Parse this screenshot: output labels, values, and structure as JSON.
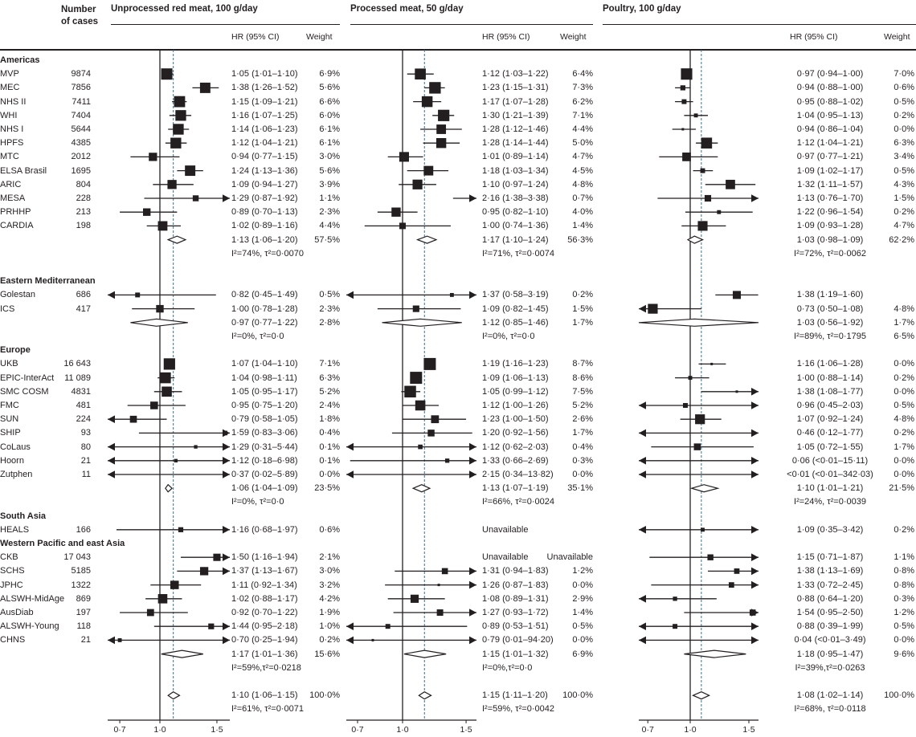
{
  "chart_data": {
    "type": "forest",
    "cases_header": [
      "Number",
      "of cases"
    ],
    "null_value": 1.0,
    "scale": "log",
    "panels": [
      {
        "title": "Unprocessed red meat, 100 g/day",
        "hr_header": "HR (95% CI)",
        "weight_header": "Weight",
        "reference_line": 1.1,
        "ticks": [
          "0·7",
          "1·0",
          "1·5"
        ],
        "tick_values": [
          0.7,
          1.0,
          1.5
        ]
      },
      {
        "title": "Processed meat, 50 g/day",
        "hr_header": "HR (95% CI)",
        "weight_header": "Weight",
        "reference_line": 1.15,
        "ticks": [
          "0·7",
          "1·0",
          "1·5"
        ],
        "tick_values": [
          0.7,
          1.0,
          1.5
        ]
      },
      {
        "title": "Poultry, 100 g/day",
        "hr_header": "HR (95% CI)",
        "weight_header": "Weight",
        "reference_line": 1.08,
        "ticks": [
          "0·7",
          "1·0",
          "1·5"
        ],
        "tick_values": [
          0.7,
          1.0,
          1.5
        ]
      }
    ],
    "rows": [
      {
        "type": "region",
        "label": "Americas"
      },
      {
        "type": "study",
        "label": "MVP",
        "cases": "9874",
        "cells": [
          [
            "1·05 (1·01–1·10)",
            "6·9%"
          ],
          [
            "1·12 (1·03–1·22)",
            "6·4%"
          ],
          [
            "0·97 (0·94–1·00)",
            "7·0%"
          ]
        ]
      },
      {
        "type": "study",
        "label": "MEC",
        "cases": "7856",
        "cells": [
          [
            "1·38 (1·26–1·52)",
            "5·6%"
          ],
          [
            "1·23 (1·15–1·31)",
            "7·3%"
          ],
          [
            "0·94 (0·88–1·00)",
            "0·6%"
          ]
        ]
      },
      {
        "type": "study",
        "label": "NHS II",
        "cases": "7411",
        "cells": [
          [
            "1·15 (1·09–1·21)",
            "6·6%"
          ],
          [
            "1·17 (1·07–1·28)",
            "6·2%"
          ],
          [
            "0·95 (0·88–1·02)",
            "0·5%"
          ]
        ]
      },
      {
        "type": "study",
        "label": "WHI",
        "cases": "7404",
        "cells": [
          [
            "1·16 (1·07–1·25)",
            "6·0%"
          ],
          [
            "1·30 (1·21–1·39)",
            "7·1%"
          ],
          [
            "1·04 (0·95–1·13)",
            "0·2%"
          ]
        ]
      },
      {
        "type": "study",
        "label": "NHS I",
        "cases": "5644",
        "cells": [
          [
            "1·14 (1·06–1·23)",
            "6·1%"
          ],
          [
            "1·28 (1·12–1·46)",
            "4·4%"
          ],
          [
            "0·94 (0·86–1·04)",
            "0·0%"
          ]
        ]
      },
      {
        "type": "study",
        "label": "HPFS",
        "cases": "4385",
        "cells": [
          [
            "1·12 (1·04–1·21)",
            "6·1%"
          ],
          [
            "1·28 (1·14–1·44)",
            "5·0%"
          ],
          [
            "1·12 (1·04–1·21)",
            "6·3%"
          ]
        ]
      },
      {
        "type": "study",
        "label": "MTC",
        "cases": "2012",
        "cells": [
          [
            "0·94 (0·77–1·15)",
            "3·0%"
          ],
          [
            "1·01 (0·89–1·14)",
            "4·7%"
          ],
          [
            "0·97 (0·77–1·21)",
            "3·4%"
          ]
        ]
      },
      {
        "type": "study",
        "label": "ELSA Brasil",
        "cases": "1695",
        "cells": [
          [
            "1·24 (1·13–1·36)",
            "5·6%"
          ],
          [
            "1·18 (1·03–1·34)",
            "4·5%"
          ],
          [
            "1·09 (1·02–1·17)",
            "0·5%"
          ]
        ]
      },
      {
        "type": "study",
        "label": "ARIC",
        "cases": "804",
        "cells": [
          [
            "1·09 (0·94–1·27)",
            "3·9%"
          ],
          [
            "1·10 (0·97–1·24)",
            "4·8%"
          ],
          [
            "1·32 (1·11–1·57)",
            "4·3%"
          ]
        ]
      },
      {
        "type": "study",
        "label": "MESA",
        "cases": "228",
        "cells": [
          [
            "1·29 (0·87–1·92)",
            "1·1%"
          ],
          [
            "2·16 (1·38–3·38)",
            "0·7%"
          ],
          [
            "1·13 (0·76–1·70)",
            "1·5%"
          ]
        ]
      },
      {
        "type": "study",
        "label": "PRHHP",
        "cases": "213",
        "cells": [
          [
            "0·89 (0·70–1·13)",
            "2·3%"
          ],
          [
            "0·95 (0·82–1·10)",
            "4·0%"
          ],
          [
            "1·22 (0·96–1·54)",
            "0·2%"
          ]
        ]
      },
      {
        "type": "study",
        "label": "CARDIA",
        "cases": "198",
        "cells": [
          [
            "1·02 (0·89–1·16)",
            "4·4%"
          ],
          [
            "1·00 (0·74–1·36)",
            "1·4%"
          ],
          [
            "1·09 (0·93–1·28)",
            "4·7%"
          ]
        ]
      },
      {
        "type": "pooled",
        "cells": [
          [
            "1·13 (1·06–1·20)",
            "57·5%"
          ],
          [
            "1·17 (1·10–1·24)",
            "56·3%"
          ],
          [
            "1·03 (0·98–1·09)",
            "62·2%"
          ]
        ]
      },
      {
        "type": "het",
        "cells": [
          [
            "I²=74%, τ²=0·0070",
            ""
          ],
          [
            "I²=71%, τ²=0·0074",
            ""
          ],
          [
            "I²=72%, τ²=0·0062",
            ""
          ]
        ]
      },
      {
        "type": "blank"
      },
      {
        "type": "region",
        "label": "Eastern Mediterranean"
      },
      {
        "type": "study",
        "label": "Golestan",
        "cases": "686",
        "cells": [
          [
            "0·82 (0·45–1·49)",
            "0·5%"
          ],
          [
            "1·37 (0·58–3·19)",
            "0·2%"
          ],
          [
            "1·38 (1·19–1·60)",
            ""
          ]
        ]
      },
      {
        "type": "study",
        "label": "ICS",
        "cases": "417",
        "cells": [
          [
            "1·00 (0·78–1·28)",
            "2·3%"
          ],
          [
            "1·09 (0·82–1·45)",
            "1·5%"
          ],
          [
            "0·73 (0·50–1·08)",
            "4·8%"
          ]
        ]
      },
      {
        "type": "pooled",
        "cells": [
          [
            "0·97 (0·77–1·22)",
            "2·8%"
          ],
          [
            "1·12 (0·85–1·46)",
            "1·7%"
          ],
          [
            "1·03 (0·56–1·92)",
            "1·7%"
          ]
        ]
      },
      {
        "type": "het",
        "cells": [
          [
            "I²=0%, τ²=0·0",
            ""
          ],
          [
            "I²=0%, τ²=0·0",
            ""
          ],
          [
            "I²=89%, τ²=0·1795",
            "6·5%"
          ]
        ]
      },
      {
        "type": "region",
        "label": "Europe"
      },
      {
        "type": "study",
        "label": "UKB",
        "cases": "16 643",
        "cells": [
          [
            "1·07 (1·04–1·10)",
            "7·1%"
          ],
          [
            "1·19 (1·16–1·23)",
            "8·7%"
          ],
          [
            "1·16 (1·06–1·28)",
            "0·0%"
          ]
        ]
      },
      {
        "type": "study",
        "label": "EPIC-InterAct",
        "cases": "11 089",
        "cells": [
          [
            "1·04 (0·98–1·11)",
            "6·3%"
          ],
          [
            "1·09 (1·06–1·13)",
            "8·6%"
          ],
          [
            "1·00 (0·88–1·14)",
            "0·2%"
          ]
        ]
      },
      {
        "type": "study",
        "label": "SMC COSM",
        "cases": "4831",
        "cells": [
          [
            "1·05 (0·95–1·17)",
            "5·2%"
          ],
          [
            "1·05 (0·99–1·12)",
            "7·5%"
          ],
          [
            "1·38 (1·08–1·77)",
            "0·0%"
          ]
        ]
      },
      {
        "type": "study",
        "label": "FMC",
        "cases": "481",
        "cells": [
          [
            "0·95 (0·75–1·20)",
            "2·4%"
          ],
          [
            "1·12 (1·00–1·26)",
            "5·2%"
          ],
          [
            "0·96 (0·45–2·03)",
            "0·5%"
          ]
        ]
      },
      {
        "type": "study",
        "label": "SUN",
        "cases": "224",
        "cells": [
          [
            "0·79 (0·58–1·05)",
            "1·8%"
          ],
          [
            "1·23 (1·00–1·50)",
            "2·6%"
          ],
          [
            "1·07 (0·92–1·24)",
            "4·8%"
          ]
        ]
      },
      {
        "type": "study",
        "label": "SHIP",
        "cases": "93",
        "cells": [
          [
            "1·59 (0·83–3·06)",
            "0·4%"
          ],
          [
            "1·20 (0·92–1·56)",
            "1·7%"
          ],
          [
            "0·46 (0·12–1·77)",
            "0·2%"
          ]
        ]
      },
      {
        "type": "study",
        "label": "CoLaus",
        "cases": "80",
        "cells": [
          [
            "1·29 (0·31–5·44)",
            "0·1%"
          ],
          [
            "1·12 (0·62–2·03)",
            "0·4%"
          ],
          [
            "1·05 (0·72–1·55)",
            "1·7%"
          ]
        ]
      },
      {
        "type": "study",
        "label": "Hoorn",
        "cases": "21",
        "cells": [
          [
            "1·12 (0·18–6·98)",
            "0·1%"
          ],
          [
            "1·33 (0·66–2·69)",
            "0·3%"
          ],
          [
            "0·06 (<0·01–15·11)",
            "0·0%"
          ]
        ]
      },
      {
        "type": "study",
        "label": "Zutphen",
        "cases": "11",
        "cells": [
          [
            "0·37 (0·02–5·89)",
            "0·0%"
          ],
          [
            "2·15 (0·34–13·82)",
            "0·0%"
          ],
          [
            "<0·01 (<0·01–342·03)",
            "0·0%"
          ]
        ]
      },
      {
        "type": "pooled",
        "cells": [
          [
            "1·06 (1·04–1·09)",
            "23·5%"
          ],
          [
            "1·13 (1·07–1·19)",
            "35·1%"
          ],
          [
            "1·10 (1·01–1·21)",
            "21·5%"
          ]
        ]
      },
      {
        "type": "het",
        "cells": [
          [
            "I²=0%, τ²=0·0",
            ""
          ],
          [
            "I²=66%, τ²=0·0024",
            ""
          ],
          [
            "I²=24%, τ²=0·0039",
            ""
          ]
        ]
      },
      {
        "type": "region",
        "label": "South Asia"
      },
      {
        "type": "study",
        "label": "HEALS",
        "cases": "166",
        "cells": [
          [
            "1·16 (0·68–1·97)",
            "0·6%"
          ],
          [
            "Unavailable",
            ""
          ],
          [
            "1·09 (0·35–3·42)",
            "0·2%"
          ]
        ]
      },
      {
        "type": "region",
        "label": "Western Pacific and east Asia"
      },
      {
        "type": "study",
        "label": "CKB",
        "cases": "17 043",
        "cells": [
          [
            "1·50 (1·16–1·94)",
            "2·1%"
          ],
          [
            "Unavailable",
            "Unavailable"
          ],
          [
            "1·15 (0·71–1·87)",
            "1·1%"
          ]
        ]
      },
      {
        "type": "study",
        "label": "SCHS",
        "cases": "5185",
        "cells": [
          [
            "1·37 (1·13–1·67)",
            "3·0%"
          ],
          [
            "1·31 (0·94–1·83)",
            "1·2%"
          ],
          [
            "1·38 (1·13–1·69)",
            "0·8%"
          ]
        ]
      },
      {
        "type": "study",
        "label": "JPHC",
        "cases": "1322",
        "cells": [
          [
            "1·11 (0·92–1·34)",
            "3·2%"
          ],
          [
            "1·26 (0·87–1·83)",
            "0·0%"
          ],
          [
            "1·33 (0·72–2·45)",
            "0·8%"
          ]
        ]
      },
      {
        "type": "study",
        "label": "ALSWH-MidAge",
        "cases": "869",
        "cells": [
          [
            "1·02 (0·88–1·17)",
            "4·2%"
          ],
          [
            "1·08 (0·89–1·31)",
            "2·9%"
          ],
          [
            "0·88 (0·64–1·20)",
            "0·3%"
          ]
        ]
      },
      {
        "type": "study",
        "label": "AusDiab",
        "cases": "197",
        "cells": [
          [
            "0·92 (0·70–1·22)",
            "1·9%"
          ],
          [
            "1·27 (0·93–1·72)",
            "1·4%"
          ],
          [
            "1·54 (0·95–2·50)",
            "1·2%"
          ]
        ]
      },
      {
        "type": "study",
        "label": "ALSWH-Young",
        "cases": "118",
        "cells": [
          [
            "1·44 (0·95–2·18)",
            "1·0%"
          ],
          [
            "0·89 (0·53–1·51)",
            "0·5%"
          ],
          [
            "0·88 (0·39–1·99)",
            "0·5%"
          ]
        ]
      },
      {
        "type": "study",
        "label": "CHNS",
        "cases": "21",
        "cells": [
          [
            "0·70 (0·25–1·94)",
            "0·2%"
          ],
          [
            "0·79 (0·01–94·20)",
            "0·0%"
          ],
          [
            "0·04 (<0·01–3·49)",
            "0·0%"
          ]
        ]
      },
      {
        "type": "pooled",
        "cells": [
          [
            "1·17 (1·01–1·36)",
            "15·6%"
          ],
          [
            "1·15 (1·01–1·32)",
            "6·9%"
          ],
          [
            "1·18 (0·95–1·47)",
            "9·6%"
          ]
        ]
      },
      {
        "type": "het",
        "cells": [
          [
            "I²=59%,τ²=0·0218",
            ""
          ],
          [
            "I²=0%,τ²=0·0",
            ""
          ],
          [
            "I²=39%,τ²=0·0263",
            ""
          ]
        ]
      },
      {
        "type": "blank"
      },
      {
        "type": "pooled",
        "cells": [
          [
            "1·10 (1·06–1·15)",
            "100·0%"
          ],
          [
            "1·15 (1·11–1·20)",
            "100·0%"
          ],
          [
            "1·08 (1·02–1·14)",
            "100·0%"
          ]
        ]
      },
      {
        "type": "het",
        "cells": [
          [
            "I²=61%, τ²=0·0071",
            ""
          ],
          [
            "I²=59%, τ²=0·0042",
            ""
          ],
          [
            "I²=68%, τ²=0·0118",
            ""
          ]
        ]
      }
    ]
  }
}
